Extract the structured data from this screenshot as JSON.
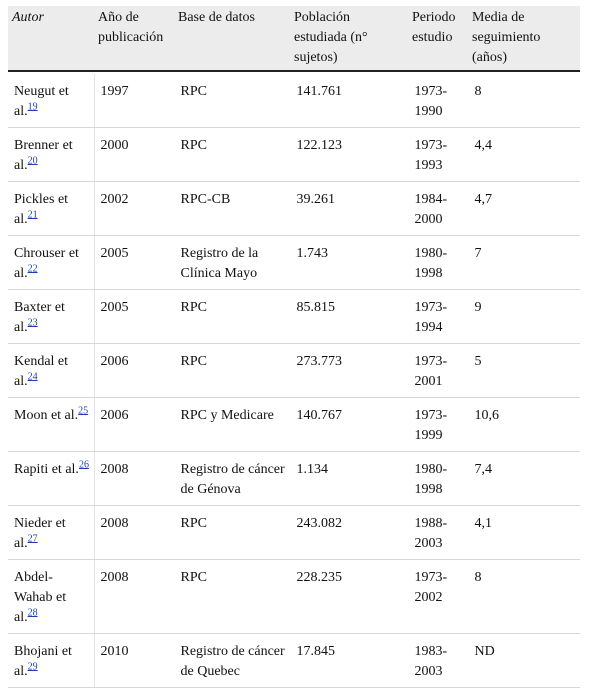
{
  "table": {
    "headers": [
      "Autor",
      "Año de publicación",
      "Base de datos",
      "Población estudiada (n° sujetos)",
      "Periodo estudio",
      "Media de seguimiento (años)"
    ],
    "rows": [
      {
        "author": "Neugut et al.",
        "ref": "19",
        "year": "1997",
        "database": "RPC",
        "population": "141.761",
        "period": "1973-1990",
        "followup": "8"
      },
      {
        "author": "Brenner et al.",
        "ref": "20",
        "year": "2000",
        "database": "RPC",
        "population": "122.123",
        "period": "1973-1993",
        "followup": "4,4"
      },
      {
        "author": "Pickles et al.",
        "ref": "21",
        "year": "2002",
        "database": "RPC-CB",
        "population": "39.261",
        "period": "1984-2000",
        "followup": "4,7"
      },
      {
        "author": "Chrouser et al.",
        "ref": "22",
        "year": "2005",
        "database": "Registro de la Clínica Mayo",
        "population": "1.743",
        "period": "1980-1998",
        "followup": "7"
      },
      {
        "author": "Baxter et al.",
        "ref": "23",
        "year": "2005",
        "database": "RPC",
        "population": "85.815",
        "period": "1973-1994",
        "followup": "9"
      },
      {
        "author": "Kendal et al.",
        "ref": "24",
        "year": "2006",
        "database": "RPC",
        "population": "273.773",
        "period": "1973-2001",
        "followup": "5"
      },
      {
        "author": "Moon et al.",
        "ref": "25",
        "year": "2006",
        "database": "RPC y Medicare",
        "population": "140.767",
        "period": "1973-1999",
        "followup": "10,6"
      },
      {
        "author": "Rapiti et al.",
        "ref": "26",
        "year": "2008",
        "database": "Registro de cáncer de Génova",
        "population": "1.134",
        "period": "1980-1998",
        "followup": "7,4"
      },
      {
        "author": "Nieder et al.",
        "ref": "27",
        "year": "2008",
        "database": "RPC",
        "population": "243.082",
        "period": "1988-2003",
        "followup": "4,1"
      },
      {
        "author": "Abdel-Wahab et al.",
        "ref": "28",
        "year": "2008",
        "database": "RPC",
        "population": "228.235",
        "period": "1973-2002",
        "followup": "8"
      },
      {
        "author": "Bhojani et al.",
        "ref": "29",
        "year": "2010",
        "database": "Registro de cáncer de Quebec",
        "population": "17.845",
        "period": "1983-2003",
        "followup": "ND"
      }
    ]
  }
}
